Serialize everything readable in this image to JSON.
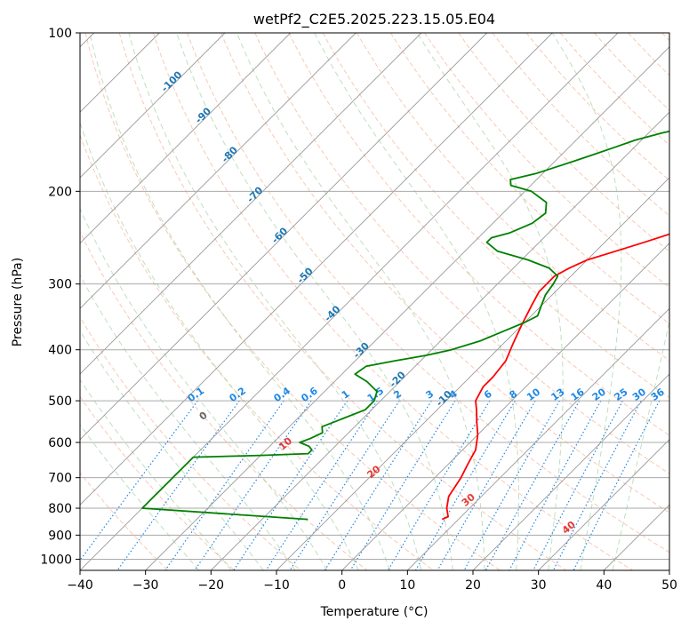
{
  "chart_data": {
    "type": "line",
    "title": "wetPf2_C2E5.2025.223.15.05.E04",
    "xlabel": "Temperature (°C)",
    "ylabel": "Pressure (hPa)",
    "xlim": [
      -40,
      50
    ],
    "ylim": [
      1050,
      100
    ],
    "y_scale": "log",
    "grid": true,
    "x_ticks": [
      -40,
      -30,
      -20,
      -10,
      0,
      10,
      20,
      30,
      40,
      50
    ],
    "x_tick_labels": [
      "−40",
      "−30",
      "−20",
      "−10",
      "0",
      "10",
      "20",
      "30",
      "40",
      "50"
    ],
    "y_ticks": [
      100,
      200,
      300,
      400,
      500,
      600,
      700,
      800,
      900,
      1000
    ],
    "y_tick_labels": [
      "100",
      "200",
      "300",
      "400",
      "500",
      "600",
      "700",
      "800",
      "900",
      "1000"
    ],
    "series": [
      {
        "color": "#ff0000",
        "points": [
          [
            7.5,
            840
          ],
          [
            8,
            830
          ],
          [
            6.5,
            800
          ],
          [
            5,
            760
          ],
          [
            4,
            700
          ],
          [
            3,
            660
          ],
          [
            2,
            620
          ],
          [
            0,
            580
          ],
          [
            -2,
            550
          ],
          [
            -4,
            520
          ],
          [
            -5.5,
            500
          ],
          [
            -6.5,
            470
          ],
          [
            -6.5,
            450
          ],
          [
            -7,
            420
          ],
          [
            -8.5,
            390
          ],
          [
            -10,
            360
          ],
          [
            -11.5,
            330
          ],
          [
            -12.5,
            310
          ],
          [
            -12.5,
            300
          ],
          [
            -12.5,
            290
          ],
          [
            -11.5,
            280
          ],
          [
            -10,
            270
          ],
          [
            -7,
            260
          ],
          [
            -4,
            250
          ],
          [
            -1,
            240
          ],
          [
            1,
            230
          ],
          [
            5,
            215
          ],
          [
            8,
            205
          ],
          [
            10,
            195
          ],
          [
            12,
            185
          ],
          [
            14,
            175
          ],
          [
            15,
            170
          ],
          [
            17,
            160
          ],
          [
            18,
            155
          ],
          [
            19.5,
            150
          ],
          [
            21,
            140
          ],
          [
            22,
            130
          ],
          [
            23,
            120
          ],
          [
            24,
            115
          ],
          [
            26,
            110
          ],
          [
            27,
            105
          ],
          [
            28,
            100
          ]
        ]
      },
      {
        "color": "#008000",
        "points": [
          [
            -13,
            840
          ],
          [
            -40,
            800
          ],
          [
            -40,
            785
          ],
          [
            -40,
            775
          ],
          [
            -40,
            760
          ],
          [
            -40,
            745
          ],
          [
            -40,
            730
          ],
          [
            -40,
            715
          ],
          [
            -40,
            705
          ],
          [
            -40,
            695
          ],
          [
            -40,
            680
          ],
          [
            -40,
            640
          ],
          [
            -30,
            635
          ],
          [
            -23,
            630
          ],
          [
            -23,
            620
          ],
          [
            -24,
            610
          ],
          [
            -26,
            600
          ],
          [
            -25,
            590
          ],
          [
            -24,
            575
          ],
          [
            -25,
            560
          ],
          [
            -23,
            540
          ],
          [
            -21,
            520
          ],
          [
            -21,
            500
          ],
          [
            -22,
            480
          ],
          [
            -25,
            460
          ],
          [
            -28,
            445
          ],
          [
            -27.5,
            430
          ],
          [
            -24,
            420
          ],
          [
            -20,
            410
          ],
          [
            -17,
            400
          ],
          [
            -14,
            385
          ],
          [
            -12,
            370
          ],
          [
            -10,
            355
          ],
          [
            -9,
            345
          ],
          [
            -10,
            330
          ],
          [
            -11,
            315
          ],
          [
            -11.5,
            300
          ],
          [
            -12,
            290
          ],
          [
            -14.5,
            280
          ],
          [
            -19,
            270
          ],
          [
            -25,
            260
          ],
          [
            -28,
            250
          ],
          [
            -28,
            245
          ],
          [
            -26,
            240
          ],
          [
            -24,
            230
          ],
          [
            -23.5,
            220
          ],
          [
            -25,
            210
          ],
          [
            -29,
            200
          ],
          [
            -33,
            195
          ],
          [
            -34,
            190
          ],
          [
            -31,
            185
          ],
          [
            -29,
            180
          ],
          [
            -27,
            175
          ],
          [
            -25,
            170
          ],
          [
            -23,
            165
          ],
          [
            -21,
            160
          ],
          [
            -18,
            155
          ],
          [
            -14,
            150
          ],
          [
            -11,
            145
          ],
          [
            -9,
            140
          ],
          [
            -8,
            135
          ],
          [
            -8,
            130
          ],
          [
            -8,
            125
          ],
          [
            -7,
            120
          ],
          [
            -5,
            115
          ],
          [
            -3,
            110
          ],
          [
            -1,
            105
          ],
          [
            0,
            100
          ]
        ]
      }
    ]
  },
  "isotherm_labels": [
    "-100",
    "-90",
    "-80",
    "-70",
    "-60",
    "-50",
    "-40",
    "-30",
    "-20",
    "-10"
  ],
  "mixing_ratio_labels": [
    "0.1",
    "0.2",
    "0.4",
    "0.6",
    "1",
    "1.5",
    "2",
    "3",
    "4",
    "6",
    "8",
    "10",
    "13",
    "16",
    "20",
    "25",
    "30",
    "36"
  ],
  "dry_adiabat_labels": [
    "0",
    "10",
    "20",
    "30",
    "40"
  ],
  "colors": {
    "temperature": "#ff0000",
    "dewpoint": "#008000",
    "isotherm": "#1f77b4",
    "mixing_ratio": "#1e88e5",
    "dry_adiabat": "#e53935",
    "moist_adiabat": "#2e7d32",
    "grid": "#aaaaaa"
  }
}
